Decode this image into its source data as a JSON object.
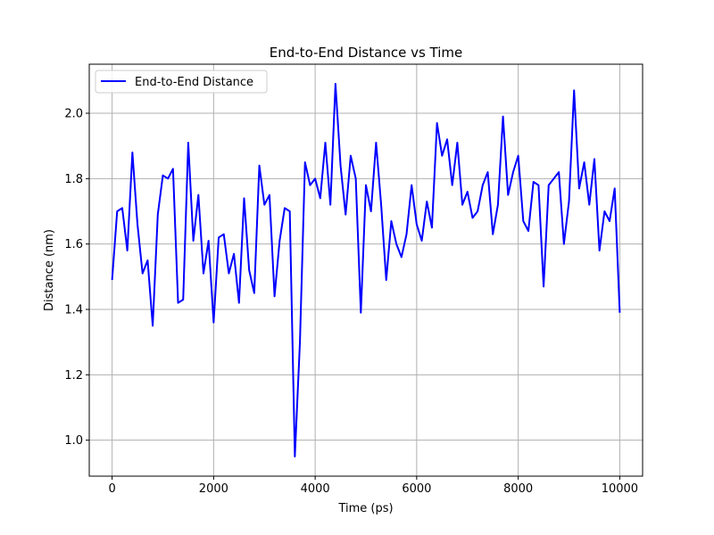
{
  "chart_data": {
    "type": "line",
    "title": "End-to-End Distance vs Time",
    "xlabel": "Time (ps)",
    "ylabel": "Distance (nm)",
    "xlim": [
      -450,
      10450
    ],
    "ylim": [
      0.89,
      2.15
    ],
    "xticks": [
      0,
      2000,
      4000,
      6000,
      8000,
      10000
    ],
    "yticks": [
      1.0,
      1.2,
      1.4,
      1.6,
      1.8,
      2.0
    ],
    "xtick_labels": [
      "0",
      "2000",
      "4000",
      "6000",
      "8000",
      "10000"
    ],
    "ytick_labels": [
      "1.0",
      "1.2",
      "1.4",
      "1.6",
      "1.8",
      "2.0"
    ],
    "grid": true,
    "legend_position": "upper left",
    "colors": {
      "series": "#0000ff",
      "grid": "#b0b0b0",
      "axes": "#000000"
    },
    "series": [
      {
        "name": "End-to-End Distance",
        "x": [
          0,
          100,
          200,
          300,
          400,
          500,
          600,
          700,
          800,
          900,
          1000,
          1100,
          1200,
          1300,
          1400,
          1500,
          1600,
          1700,
          1800,
          1900,
          2000,
          2100,
          2200,
          2300,
          2400,
          2500,
          2600,
          2700,
          2800,
          2900,
          3000,
          3100,
          3200,
          3300,
          3400,
          3500,
          3600,
          3700,
          3800,
          3900,
          4000,
          4100,
          4200,
          4300,
          4400,
          4500,
          4600,
          4700,
          4800,
          4900,
          5000,
          5100,
          5200,
          5300,
          5400,
          5500,
          5600,
          5700,
          5800,
          5900,
          6000,
          6100,
          6200,
          6300,
          6400,
          6500,
          6600,
          6700,
          6800,
          6900,
          7000,
          7100,
          7200,
          7300,
          7400,
          7500,
          7600,
          7700,
          7800,
          7900,
          8000,
          8100,
          8200,
          8300,
          8400,
          8500,
          8600,
          8700,
          8800,
          8900,
          9000,
          9100,
          9200,
          9300,
          9400,
          9500,
          9600,
          9700,
          9800,
          9900,
          10000
        ],
        "values": [
          1.49,
          1.7,
          1.71,
          1.58,
          1.88,
          1.66,
          1.51,
          1.55,
          1.35,
          1.69,
          1.81,
          1.8,
          1.83,
          1.42,
          1.43,
          1.91,
          1.61,
          1.75,
          1.51,
          1.61,
          1.36,
          1.62,
          1.63,
          1.51,
          1.57,
          1.42,
          1.74,
          1.52,
          1.45,
          1.84,
          1.72,
          1.75,
          1.44,
          1.61,
          1.71,
          1.7,
          0.95,
          1.3,
          1.85,
          1.78,
          1.8,
          1.74,
          1.91,
          1.72,
          2.09,
          1.84,
          1.69,
          1.87,
          1.8,
          1.39,
          1.78,
          1.7,
          1.91,
          1.72,
          1.49,
          1.67,
          1.6,
          1.56,
          1.63,
          1.78,
          1.66,
          1.61,
          1.73,
          1.65,
          1.97,
          1.87,
          1.92,
          1.78,
          1.91,
          1.72,
          1.76,
          1.68,
          1.7,
          1.78,
          1.82,
          1.63,
          1.72,
          1.99,
          1.75,
          1.82,
          1.87,
          1.67,
          1.64,
          1.79,
          1.78,
          1.47,
          1.78,
          1.8,
          1.82,
          1.6,
          1.73,
          2.07,
          1.77,
          1.85,
          1.72,
          1.86,
          1.58,
          1.7,
          1.67,
          1.77,
          1.39
        ]
      }
    ]
  }
}
